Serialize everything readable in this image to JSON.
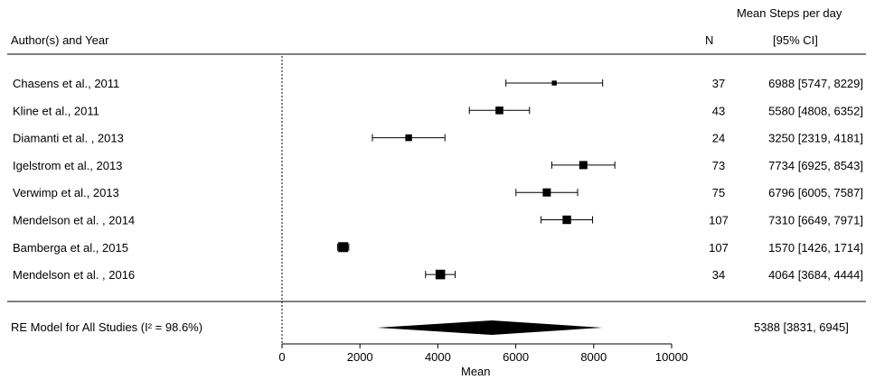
{
  "chart_data": {
    "type": "forest",
    "header": {
      "study_col": "Author(s) and Year",
      "n_col": "N",
      "estimate_col_line1": "Mean Steps per day",
      "estimate_col_line2": "[95% CI]"
    },
    "xlabel": "Mean",
    "xlim": [
      0,
      10000
    ],
    "xticks": [
      0,
      2000,
      4000,
      6000,
      8000,
      10000
    ],
    "reference_line": 0,
    "studies": [
      {
        "label": "Chasens et al., 2011",
        "n": "37",
        "mean": 6988,
        "lower": 5747,
        "upper": 8229,
        "ci_text": "6988 [5747, 8229]",
        "weight": 0.3
      },
      {
        "label": "Kline et al., 2011",
        "n": "43",
        "mean": 5580,
        "lower": 4808,
        "upper": 6352,
        "ci_text": "5580 [4808, 6352]",
        "weight": 0.7
      },
      {
        "label": "Diamanti et al. , 2013",
        "n": "24",
        "mean": 3250,
        "lower": 2319,
        "upper": 4181,
        "ci_text": "3250 [2319, 4181]",
        "weight": 0.55
      },
      {
        "label": "Igelstrom et al., 2013",
        "n": "73",
        "mean": 7734,
        "lower": 6925,
        "upper": 8543,
        "ci_text": "7734 [6925, 8543]",
        "weight": 0.75
      },
      {
        "label": "Verwimp et al., 2013",
        "n": "75",
        "mean": 6796,
        "lower": 6005,
        "upper": 7587,
        "ci_text": "6796 [6005, 7587]",
        "weight": 0.75
      },
      {
        "label": "Mendelson et al. , 2014",
        "n": "107",
        "mean": 7310,
        "lower": 6649,
        "upper": 7971,
        "ci_text": "7310 [6649, 7971]",
        "weight": 0.8
      },
      {
        "label": "Bamberga et al., 2015",
        "n": "107",
        "mean": 1570,
        "lower": 1426,
        "upper": 1714,
        "ci_text": "1570 [1426, 1714]",
        "weight": 1.0
      },
      {
        "label": "Mendelson et al. , 2016",
        "n": "34",
        "mean": 4064,
        "lower": 3684,
        "upper": 4444,
        "ci_text": "4064 [3684, 4444]",
        "weight": 0.95
      }
    ],
    "summary": {
      "label": "RE Model for All Studies (I² = 98.6%)",
      "mean": 5388,
      "lower": 3831,
      "upper": 6945,
      "pi_lower": 3800,
      "pi_upper": 6950,
      "ci_text": "5388 [3831, 6945]"
    }
  }
}
